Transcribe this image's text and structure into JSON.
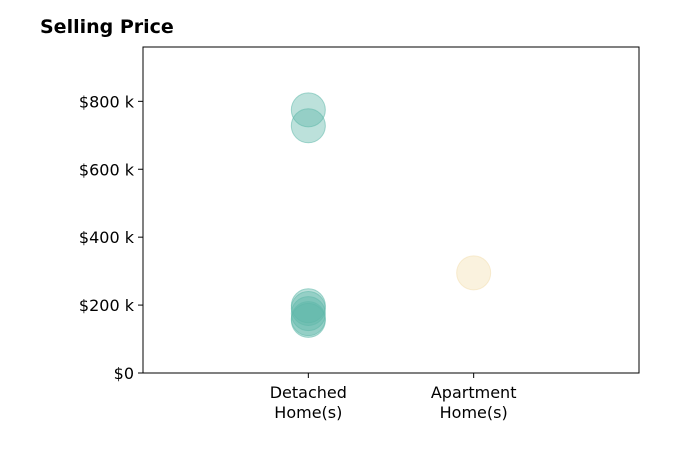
{
  "chart_data": {
    "type": "scatter",
    "title": "Selling Price",
    "xlabel": "",
    "ylabel": "",
    "categories": [
      [
        "Detached",
        "Home(s)"
      ],
      [
        "Apartment",
        "Home(s)"
      ]
    ],
    "ylim": [
      0,
      960000
    ],
    "y_ticks": [
      {
        "value": 0,
        "label": "$0"
      },
      {
        "value": 200000,
        "label": "$200 k"
      },
      {
        "value": 400000,
        "label": "$400 k"
      },
      {
        "value": 600000,
        "label": "$600 k"
      },
      {
        "value": 800000,
        "label": "$800 k"
      }
    ],
    "grid": false,
    "series": [
      {
        "category_index": 0,
        "color": "#5fb8aa",
        "values": [
          775000,
          728000,
          198000,
          190000,
          175000,
          160000,
          155000
        ]
      },
      {
        "category_index": 1,
        "color": "#f3dfb0",
        "values": [
          295000
        ]
      }
    ]
  }
}
